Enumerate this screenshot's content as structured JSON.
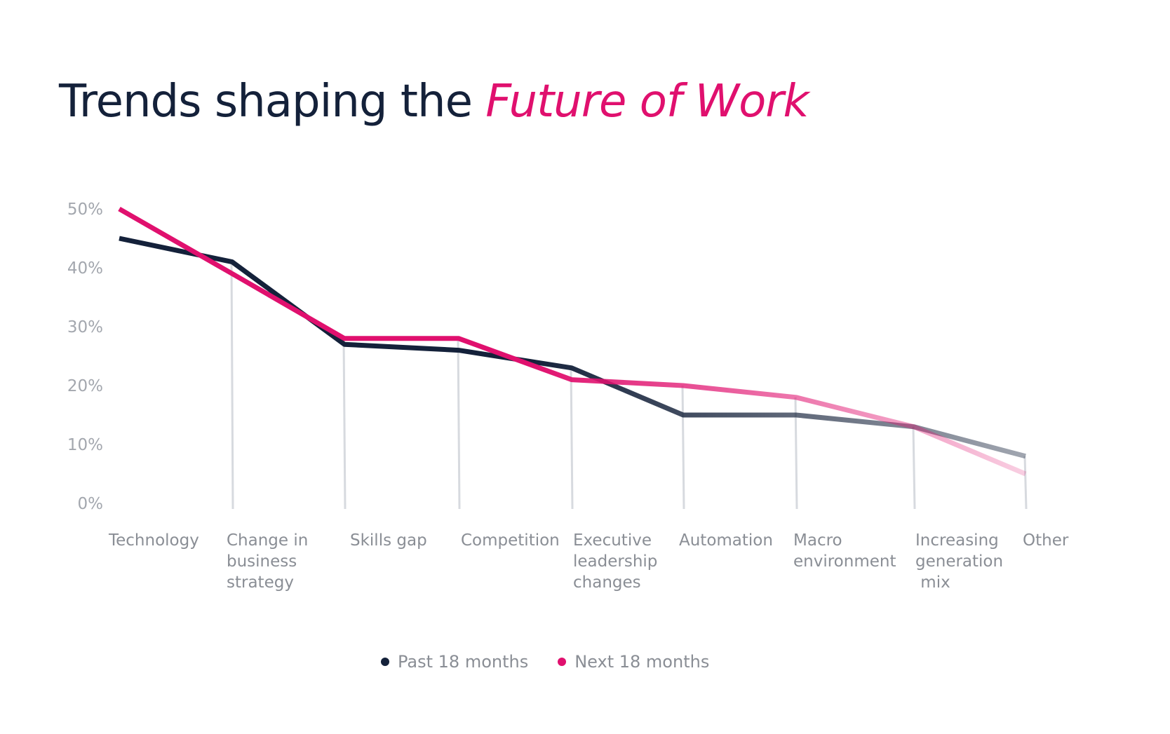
{
  "title": {
    "prefix": "Trends shaping the",
    "accent": "Future of Work"
  },
  "colors": {
    "past": "#14213a",
    "next": "#e0106e",
    "grid": "#d7dadf"
  },
  "chart_data": {
    "type": "line",
    "title": "Trends shaping the Future of Work",
    "categories": [
      [
        "Technology"
      ],
      [
        "Change in",
        "business",
        "strategy"
      ],
      [
        "Skills gap"
      ],
      [
        "Competition"
      ],
      [
        "Executive",
        "leadership",
        "changes"
      ],
      [
        "Automation"
      ],
      [
        "Macro",
        "environment"
      ],
      [
        "Increasing",
        "generation",
        " mix"
      ],
      [
        "Other"
      ]
    ],
    "series": [
      {
        "name": "Past 18 months",
        "color": "#14213a",
        "values": [
          45,
          41,
          27,
          26,
          23,
          15,
          15,
          13,
          8
        ]
      },
      {
        "name": "Next 18 months",
        "color": "#e0106e",
        "values": [
          50,
          39,
          28,
          28,
          21,
          20,
          18,
          13,
          5
        ]
      }
    ],
    "yticks": [
      "0%",
      "10%",
      "20%",
      "30%",
      "40%",
      "50%"
    ],
    "ylim": [
      0,
      50
    ],
    "legend": "bottom-center"
  },
  "legend": [
    {
      "label": "Past 18 months",
      "color": "#14213a"
    },
    {
      "label": "Next 18 months",
      "color": "#e0106e"
    }
  ]
}
